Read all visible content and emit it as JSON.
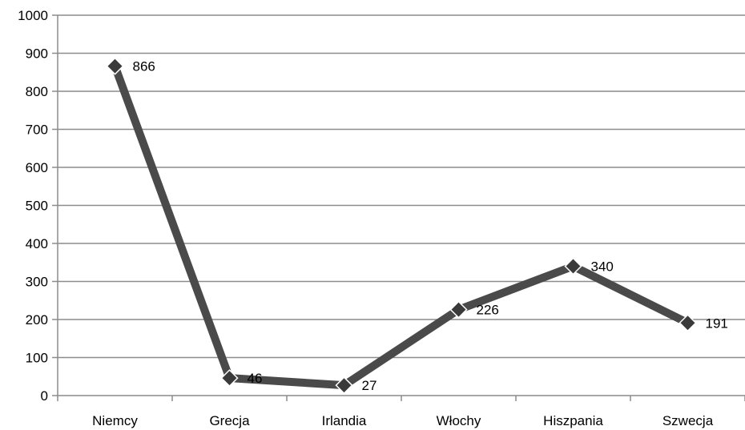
{
  "chart_data": {
    "type": "line",
    "categories": [
      "Niemcy",
      "Grecja",
      "Irlandia",
      "Włochy",
      "Hiszpania",
      "Szwecja"
    ],
    "series": [
      {
        "values": [
          866,
          46,
          27,
          226,
          340,
          191
        ]
      }
    ],
    "data_labels": [
      "866",
      "46",
      "27",
      "226",
      "340",
      "191"
    ],
    "y_ticks": [
      "0",
      "100",
      "200",
      "300",
      "400",
      "500",
      "600",
      "700",
      "800",
      "900",
      "1000"
    ],
    "ylim": [
      0,
      1000
    ],
    "grid": true,
    "line_color": "#4a4a4a",
    "marker": "diamond",
    "marker_color": "#3a3a3a",
    "grid_color": "#8c8c8c"
  }
}
